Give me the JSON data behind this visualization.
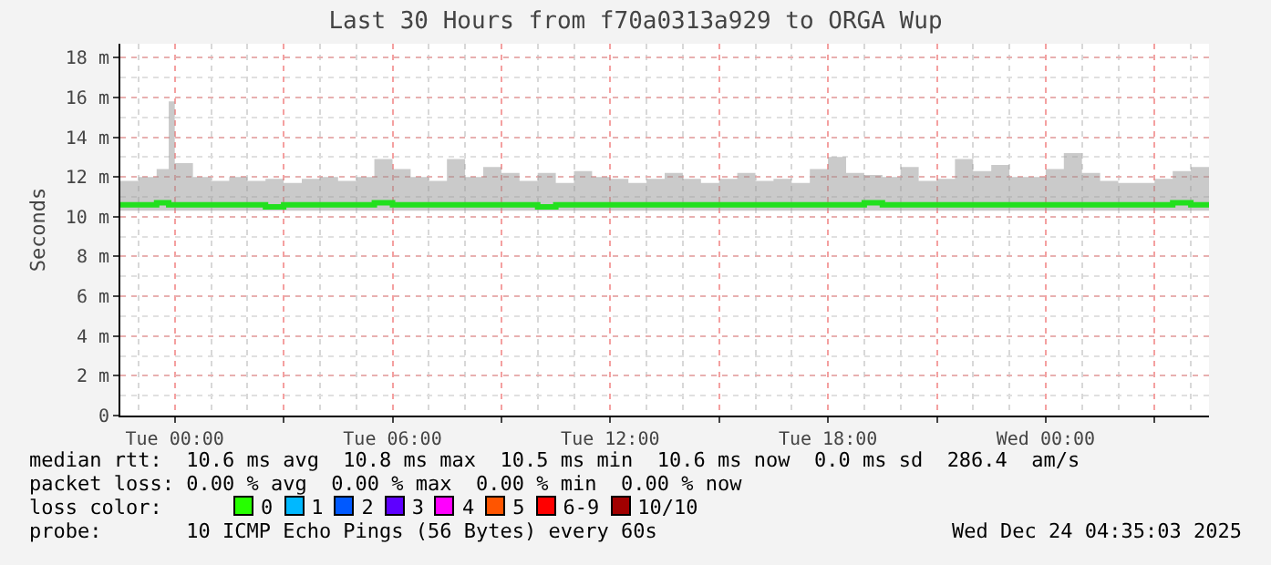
{
  "chart_data": {
    "type": "line",
    "title": "Last 30 Hours from f70a0313a929 to ORGA Wup",
    "ylabel": "Seconds",
    "x": [
      "2025-12-22T22:30",
      "2025-12-22T23:00",
      "2025-12-22T23:30",
      "2025-12-22T23:50",
      "2025-12-23T00:00",
      "2025-12-23T00:30",
      "2025-12-23T01:00",
      "2025-12-23T01:30",
      "2025-12-23T02:00",
      "2025-12-23T02:30",
      "2025-12-23T03:00",
      "2025-12-23T03:30",
      "2025-12-23T04:00",
      "2025-12-23T04:30",
      "2025-12-23T05:00",
      "2025-12-23T05:30",
      "2025-12-23T06:00",
      "2025-12-23T06:30",
      "2025-12-23T07:00",
      "2025-12-23T07:30",
      "2025-12-23T08:00",
      "2025-12-23T08:30",
      "2025-12-23T09:00",
      "2025-12-23T09:30",
      "2025-12-23T10:00",
      "2025-12-23T10:30",
      "2025-12-23T11:00",
      "2025-12-23T11:30",
      "2025-12-23T12:00",
      "2025-12-23T12:30",
      "2025-12-23T13:00",
      "2025-12-23T13:30",
      "2025-12-23T14:00",
      "2025-12-23T14:30",
      "2025-12-23T15:00",
      "2025-12-23T15:30",
      "2025-12-23T16:00",
      "2025-12-23T16:30",
      "2025-12-23T17:00",
      "2025-12-23T17:30",
      "2025-12-23T18:00",
      "2025-12-23T18:30",
      "2025-12-23T19:00",
      "2025-12-23T19:30",
      "2025-12-23T20:00",
      "2025-12-23T20:30",
      "2025-12-23T21:00",
      "2025-12-23T21:30",
      "2025-12-23T22:00",
      "2025-12-23T22:30",
      "2025-12-23T23:00",
      "2025-12-23T23:30",
      "2025-12-24T00:00",
      "2025-12-24T00:30",
      "2025-12-24T01:00",
      "2025-12-24T01:30",
      "2025-12-24T02:00",
      "2025-12-24T02:30",
      "2025-12-24T03:00",
      "2025-12-24T03:30",
      "2025-12-24T04:00",
      "2025-12-24T04:30"
    ],
    "series": [
      {
        "color": "#22e01e",
        "values": [
          10.6,
          10.6,
          10.7,
          10.6,
          10.6,
          10.6,
          10.6,
          10.6,
          10.6,
          10.5,
          10.6,
          10.6,
          10.6,
          10.6,
          10.6,
          10.7,
          10.6,
          10.6,
          10.6,
          10.6,
          10.6,
          10.6,
          10.6,
          10.6,
          10.5,
          10.6,
          10.6,
          10.6,
          10.6,
          10.6,
          10.6,
          10.6,
          10.6,
          10.6,
          10.6,
          10.6,
          10.6,
          10.6,
          10.6,
          10.6,
          10.6,
          10.6,
          10.7,
          10.6,
          10.6,
          10.6,
          10.6,
          10.6,
          10.6,
          10.6,
          10.6,
          10.6,
          10.6,
          10.6,
          10.6,
          10.6,
          10.6,
          10.6,
          10.6,
          10.7,
          10.6,
          10.6
        ],
        "lower": [
          10.3,
          10.3,
          10.3,
          10.3,
          10.3,
          10.3,
          10.3,
          10.3,
          10.3,
          10.3,
          10.3,
          10.3,
          10.3,
          10.3,
          10.3,
          10.3,
          10.3,
          10.3,
          10.3,
          10.3,
          10.3,
          10.3,
          10.3,
          10.3,
          10.3,
          10.3,
          10.3,
          10.3,
          10.3,
          10.3,
          10.3,
          10.3,
          10.3,
          10.3,
          10.3,
          10.3,
          10.3,
          10.3,
          10.3,
          10.3,
          10.3,
          10.3,
          10.3,
          10.3,
          10.3,
          10.3,
          10.3,
          10.3,
          10.3,
          10.3,
          10.3,
          10.3,
          10.3,
          10.3,
          10.3,
          10.3,
          10.3,
          10.3,
          10.3,
          10.3,
          10.3,
          10.3
        ],
        "upper": [
          11.8,
          12,
          12.4,
          15.8,
          12.7,
          12,
          11.8,
          12,
          11.8,
          11.9,
          11.7,
          11.9,
          12,
          11.8,
          12,
          12.9,
          12.4,
          12,
          11.8,
          12.9,
          12,
          12.5,
          12.2,
          11.8,
          12.2,
          11.7,
          12.3,
          12,
          11.9,
          11.7,
          11.9,
          12.2,
          11.9,
          11.7,
          11.9,
          12.2,
          11.8,
          11.9,
          11.7,
          12.4,
          13,
          12.2,
          12.1,
          12,
          12.5,
          11.8,
          11.9,
          12.9,
          12.3,
          12.6,
          12,
          12,
          12.4,
          13.2,
          12.2,
          11.8,
          11.7,
          11.7,
          11.9,
          12.3,
          12.5,
          12.5
        ]
      }
    ],
    "xlim": [
      "2025-12-22T22:30",
      "2025-12-24T04:30"
    ],
    "xticks": [
      {
        "value": "2025-12-23T00:00",
        "label": "Tue 00:00"
      },
      {
        "value": "2025-12-23T03:00",
        "label": null
      },
      {
        "value": "2025-12-23T06:00",
        "label": "Tue 06:00"
      },
      {
        "value": "2025-12-23T09:00",
        "label": null
      },
      {
        "value": "2025-12-23T12:00",
        "label": "Tue 12:00"
      },
      {
        "value": "2025-12-23T15:00",
        "label": null
      },
      {
        "value": "2025-12-23T18:00",
        "label": "Tue 18:00"
      },
      {
        "value": "2025-12-23T21:00",
        "label": null
      },
      {
        "value": "2025-12-24T00:00",
        "label": "Wed 00:00"
      },
      {
        "value": "2025-12-24T03:00",
        "label": null
      }
    ],
    "ylim": [
      0,
      18.7
    ],
    "yticks": [
      0,
      {
        "value": 2,
        "label": "2 m"
      },
      {
        "value": 4,
        "label": "4 m"
      },
      {
        "value": 6,
        "label": "6 m"
      },
      {
        "value": 8,
        "label": "8 m"
      },
      {
        "value": 10,
        "label": "10 m"
      },
      {
        "value": 12,
        "label": "12 m"
      },
      {
        "value": 14,
        "label": "14 m"
      },
      {
        "value": 16,
        "label": "16 m"
      },
      {
        "value": 18,
        "label": "18 m"
      }
    ],
    "grid": true,
    "annotations": [
      "median rtt:  10.6 ms avg  10.8 ms max  10.5 ms min  10.6 ms now  0.0 ms sd  286.4  am/s",
      "packet loss: 0.00 % avg  0.00 % max  0.00 % min  0.00 % now",
      "loss color:",
      "0",
      "1",
      "2",
      "3",
      "4",
      "5",
      "6-9",
      "10/10",
      "probe:       10 ICMP Echo Pings (56 Bytes) every 60s",
      "Wed Dec 24 04:35:03 2025"
    ]
  }
}
